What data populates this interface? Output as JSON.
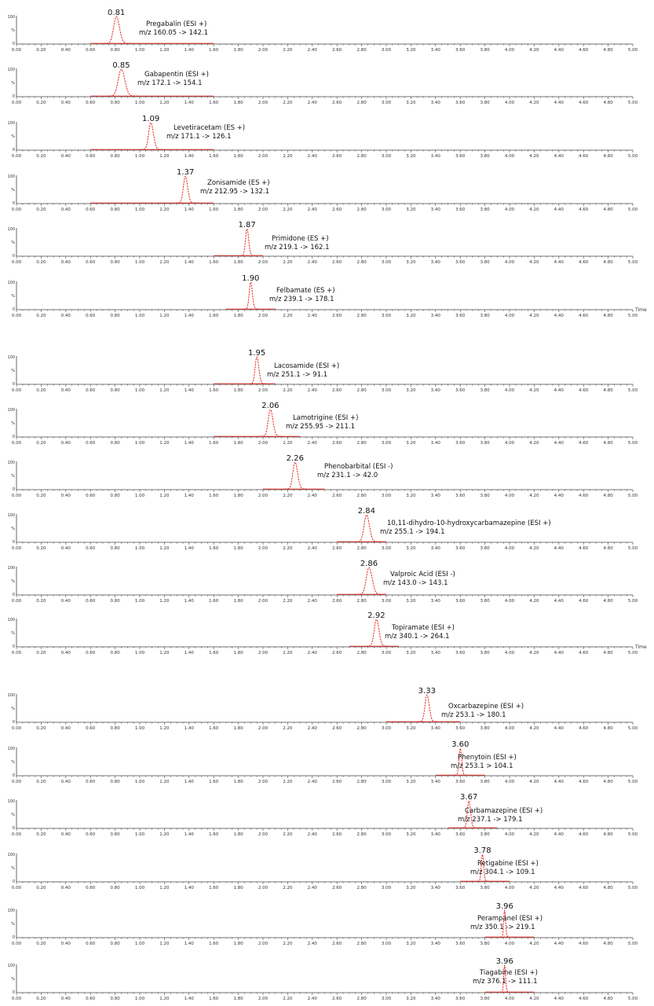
{
  "chart_data": {
    "type": "line",
    "x_range": [
      0.0,
      5.0
    ],
    "x_ticks": [
      "0.00",
      "0.20",
      "0.40",
      "0.60",
      "0.80",
      "1.00",
      "1.20",
      "1.40",
      "1.60",
      "1.80",
      "2.00",
      "2.20",
      "2.40",
      "2.60",
      "2.80",
      "3.00",
      "3.20",
      "3.40",
      "3.60",
      "3.80",
      "4.00",
      "4.20",
      "4.40",
      "4.60",
      "4.80",
      "5.00"
    ],
    "y_ticks": [
      "100",
      "%",
      "0"
    ],
    "time_label": "Time",
    "line_color": "#e8251e",
    "panels": [
      {
        "retention_time": 0.81,
        "rt_label": "0.81",
        "compound": "Pregabalin (ESI +)",
        "transition": "m/z 160.05 -> 142.1",
        "width": 0.022,
        "baseline": [
          0.6,
          1.6
        ]
      },
      {
        "retention_time": 0.85,
        "rt_label": "0.85",
        "compound": "Gabapentin (ESI +)",
        "transition": "m/z 172.1 -> 154.1",
        "width": 0.025,
        "baseline": [
          0.6,
          1.6
        ]
      },
      {
        "retention_time": 1.09,
        "rt_label": "1.09",
        "compound": "Levetiracetam (ES +)",
        "transition": "m/z 171.1 -> 126.1",
        "width": 0.018,
        "baseline": [
          0.6,
          1.6
        ]
      },
      {
        "retention_time": 1.37,
        "rt_label": "1.37",
        "compound": "Zonisamide (ES +)",
        "transition": "m/z 212.95 -> 132.1",
        "width": 0.016,
        "baseline": [
          0.6,
          1.6
        ]
      },
      {
        "retention_time": 1.87,
        "rt_label": "1.87",
        "compound": "Primidone (ES +)",
        "transition": "m/z 219.1 -> 162.1",
        "width": 0.012,
        "baseline": [
          1.6,
          2.0
        ]
      },
      {
        "retention_time": 1.9,
        "rt_label": "1.90",
        "compound": "Felbamate (ES +)",
        "transition": "m/z 239.1 -> 178.1",
        "width": 0.012,
        "baseline": [
          1.7,
          2.1
        ]
      },
      {
        "retention_time": 1.95,
        "rt_label": "1.95",
        "compound": "Lacosamide (ESI +)",
        "transition": "m/z 251.1 -> 91.1",
        "width": 0.014,
        "baseline": [
          1.6,
          2.1
        ]
      },
      {
        "retention_time": 2.06,
        "rt_label": "2.06",
        "compound": "Lamotrigine (ESI +)",
        "transition": "m/z 255.95 -> 211.1",
        "width": 0.018,
        "baseline": [
          1.6,
          2.3
        ]
      },
      {
        "retention_time": 2.26,
        "rt_label": "2.26",
        "compound": "Phenobarbital (ESI -)",
        "transition": "m/z 231.1 -> 42.0",
        "width": 0.018,
        "baseline": [
          2.0,
          2.5
        ]
      },
      {
        "retention_time": 2.84,
        "rt_label": "2.84",
        "compound": "10,11-dihydro-10-hydroxycarbamazepine (ESI +)",
        "transition": "m/z 255.1 -> 194.1",
        "width": 0.02,
        "baseline": [
          2.6,
          3.0
        ]
      },
      {
        "retention_time": 2.86,
        "rt_label": "2.86",
        "compound": "Valproic Acid (ESI -)",
        "transition": "m/z 143.0 -> 143.1",
        "width": 0.022,
        "baseline": [
          2.6,
          3.0
        ]
      },
      {
        "retention_time": 2.92,
        "rt_label": "2.92",
        "compound": "Topiramate (ESI +)",
        "transition": "m/z 340.1 -> 264.1",
        "width": 0.018,
        "baseline": [
          2.7,
          3.1
        ]
      },
      {
        "retention_time": 3.33,
        "rt_label": "3.33",
        "compound": "Oxcarbazepine (ESI +)",
        "transition": "m/z 253.1 -> 180.1",
        "width": 0.016,
        "baseline": [
          3.0,
          3.6
        ]
      },
      {
        "retention_time": 3.6,
        "rt_label": "3.60",
        "compound": "Phenytoin (ESI +)",
        "transition": "m/z 253.1 > 104.1",
        "width": 0.01,
        "baseline": [
          3.4,
          3.8
        ]
      },
      {
        "retention_time": 3.67,
        "rt_label": "3.67",
        "compound": "Carbamazepine (ESI +)",
        "transition": "m/z 237.1 -> 179.1",
        "width": 0.012,
        "baseline": [
          3.5,
          3.9
        ]
      },
      {
        "retention_time": 3.78,
        "rt_label": "3.78",
        "compound": "Retigabine (ESI +)",
        "transition": "m/z 304.1 -> 109.1",
        "width": 0.009,
        "baseline": [
          3.6,
          4.0
        ]
      },
      {
        "retention_time": 3.96,
        "rt_label": "3.96",
        "compound": "Perampanel (ESI +)",
        "transition": "m/z 350.1 -> 219.1",
        "width": 0.007,
        "baseline": [
          3.8,
          4.2
        ]
      },
      {
        "retention_time": 3.96,
        "rt_label": "3.96",
        "compound": "Tiagabine (ESI +)",
        "transition": "m/z 376.1 -> 111.1",
        "width": 0.007,
        "baseline": [
          3.8,
          4.2
        ]
      }
    ]
  }
}
